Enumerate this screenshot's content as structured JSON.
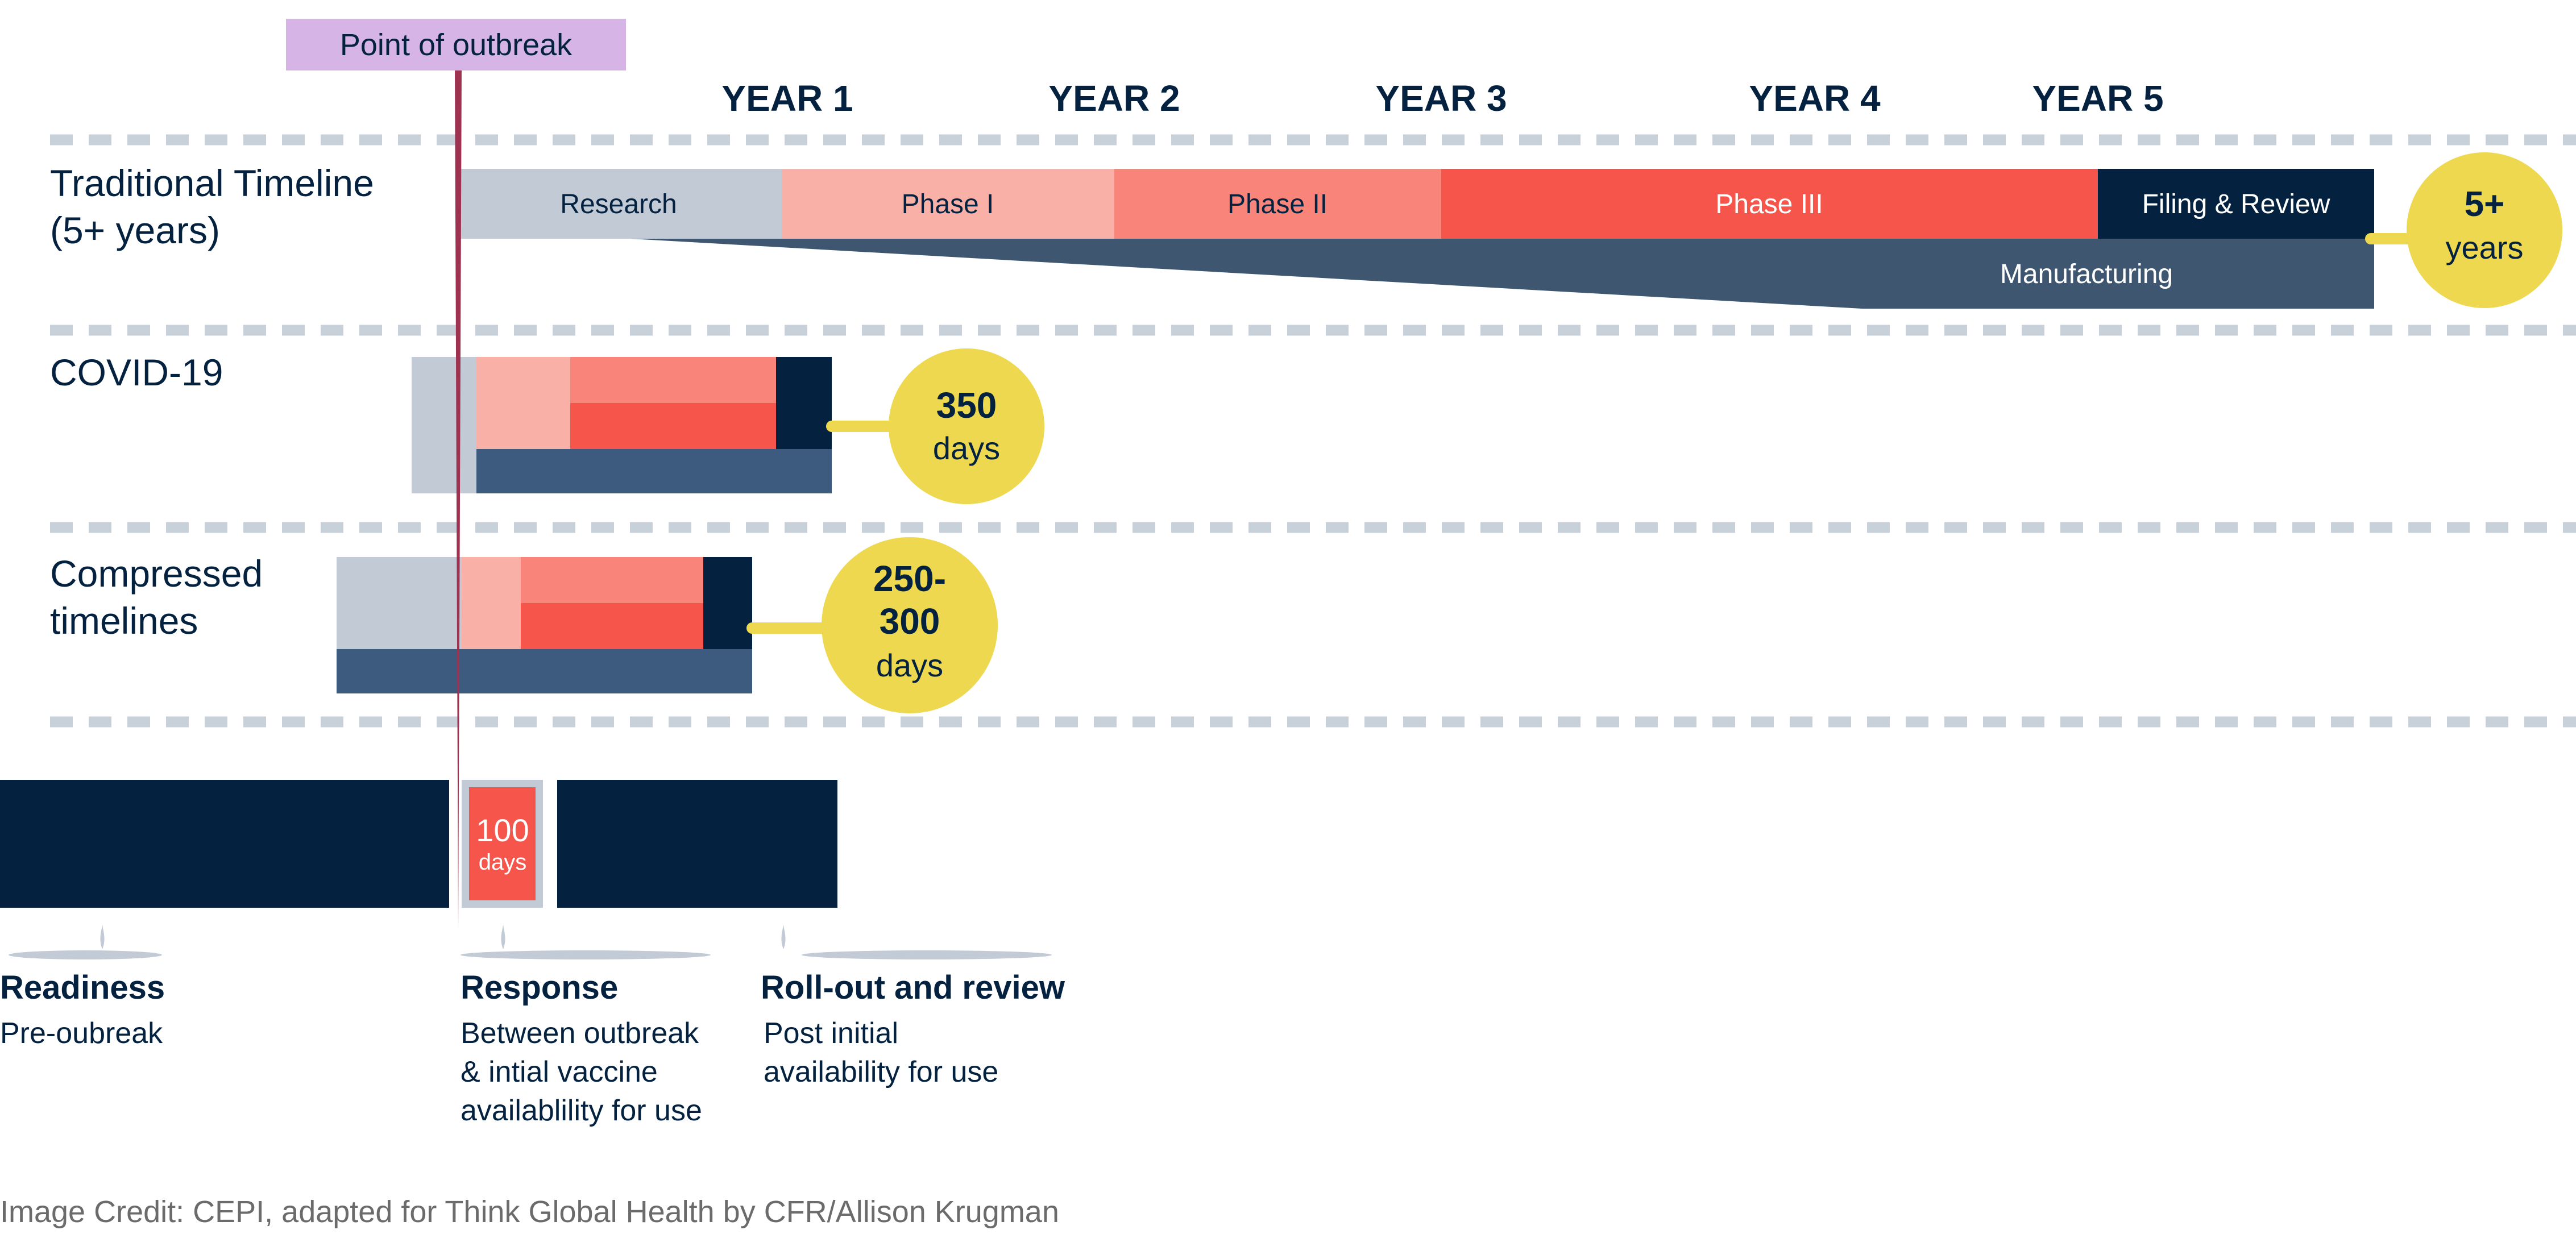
{
  "outbreak": {
    "label": "Point of outbreak"
  },
  "years": [
    "YEAR 1",
    "YEAR 2",
    "YEAR 3",
    "YEAR 4",
    "YEAR 5"
  ],
  "rows": {
    "traditional": {
      "label_line1": "Traditional Timeline",
      "label_line2": "(5+ years)",
      "phases": {
        "research": "Research",
        "phase1": "Phase I",
        "phase2": "Phase II",
        "phase3": "Phase III",
        "filing": "Filing & Review",
        "manufacturing": "Manufacturing"
      },
      "badge_line1": "5+",
      "badge_line2": "years"
    },
    "covid": {
      "label_line1": "COVID-19",
      "badge_line1": "350",
      "badge_line2": "days"
    },
    "compressed": {
      "label_line1": "Compressed",
      "label_line2": "timelines",
      "badge_line1": "250-",
      "badge_line2": "300",
      "badge_line3": "days"
    }
  },
  "hundred_days": {
    "line1": "100",
    "line2": "days"
  },
  "stages": [
    {
      "title": "Readiness",
      "lines": [
        "Pre-oubreak"
      ]
    },
    {
      "title": "Response",
      "lines": [
        "Between outbreak",
        "& intial vaccine",
        "availablility for use"
      ]
    },
    {
      "title": "Roll-out and review",
      "lines": [
        "Post initial",
        "availability for use"
      ]
    }
  ],
  "credit": "Image Credit: CEPI, adapted for Think Global Health by CFR/Allison Krugman",
  "colors": {
    "navy": "#04223F",
    "slate": "#3E5670",
    "blue_manufacturing": "#3C5B7E",
    "research_gray": "#C1CAD5",
    "phase1": "#F9B0A7",
    "phase2": "#F8847A",
    "phase3": "#F5554A",
    "badge_yellow": "#EDD850",
    "outbreak_purple": "#D7B4E6",
    "outbreak_line": "#9E3250",
    "divider": "#C8D0DA"
  }
}
